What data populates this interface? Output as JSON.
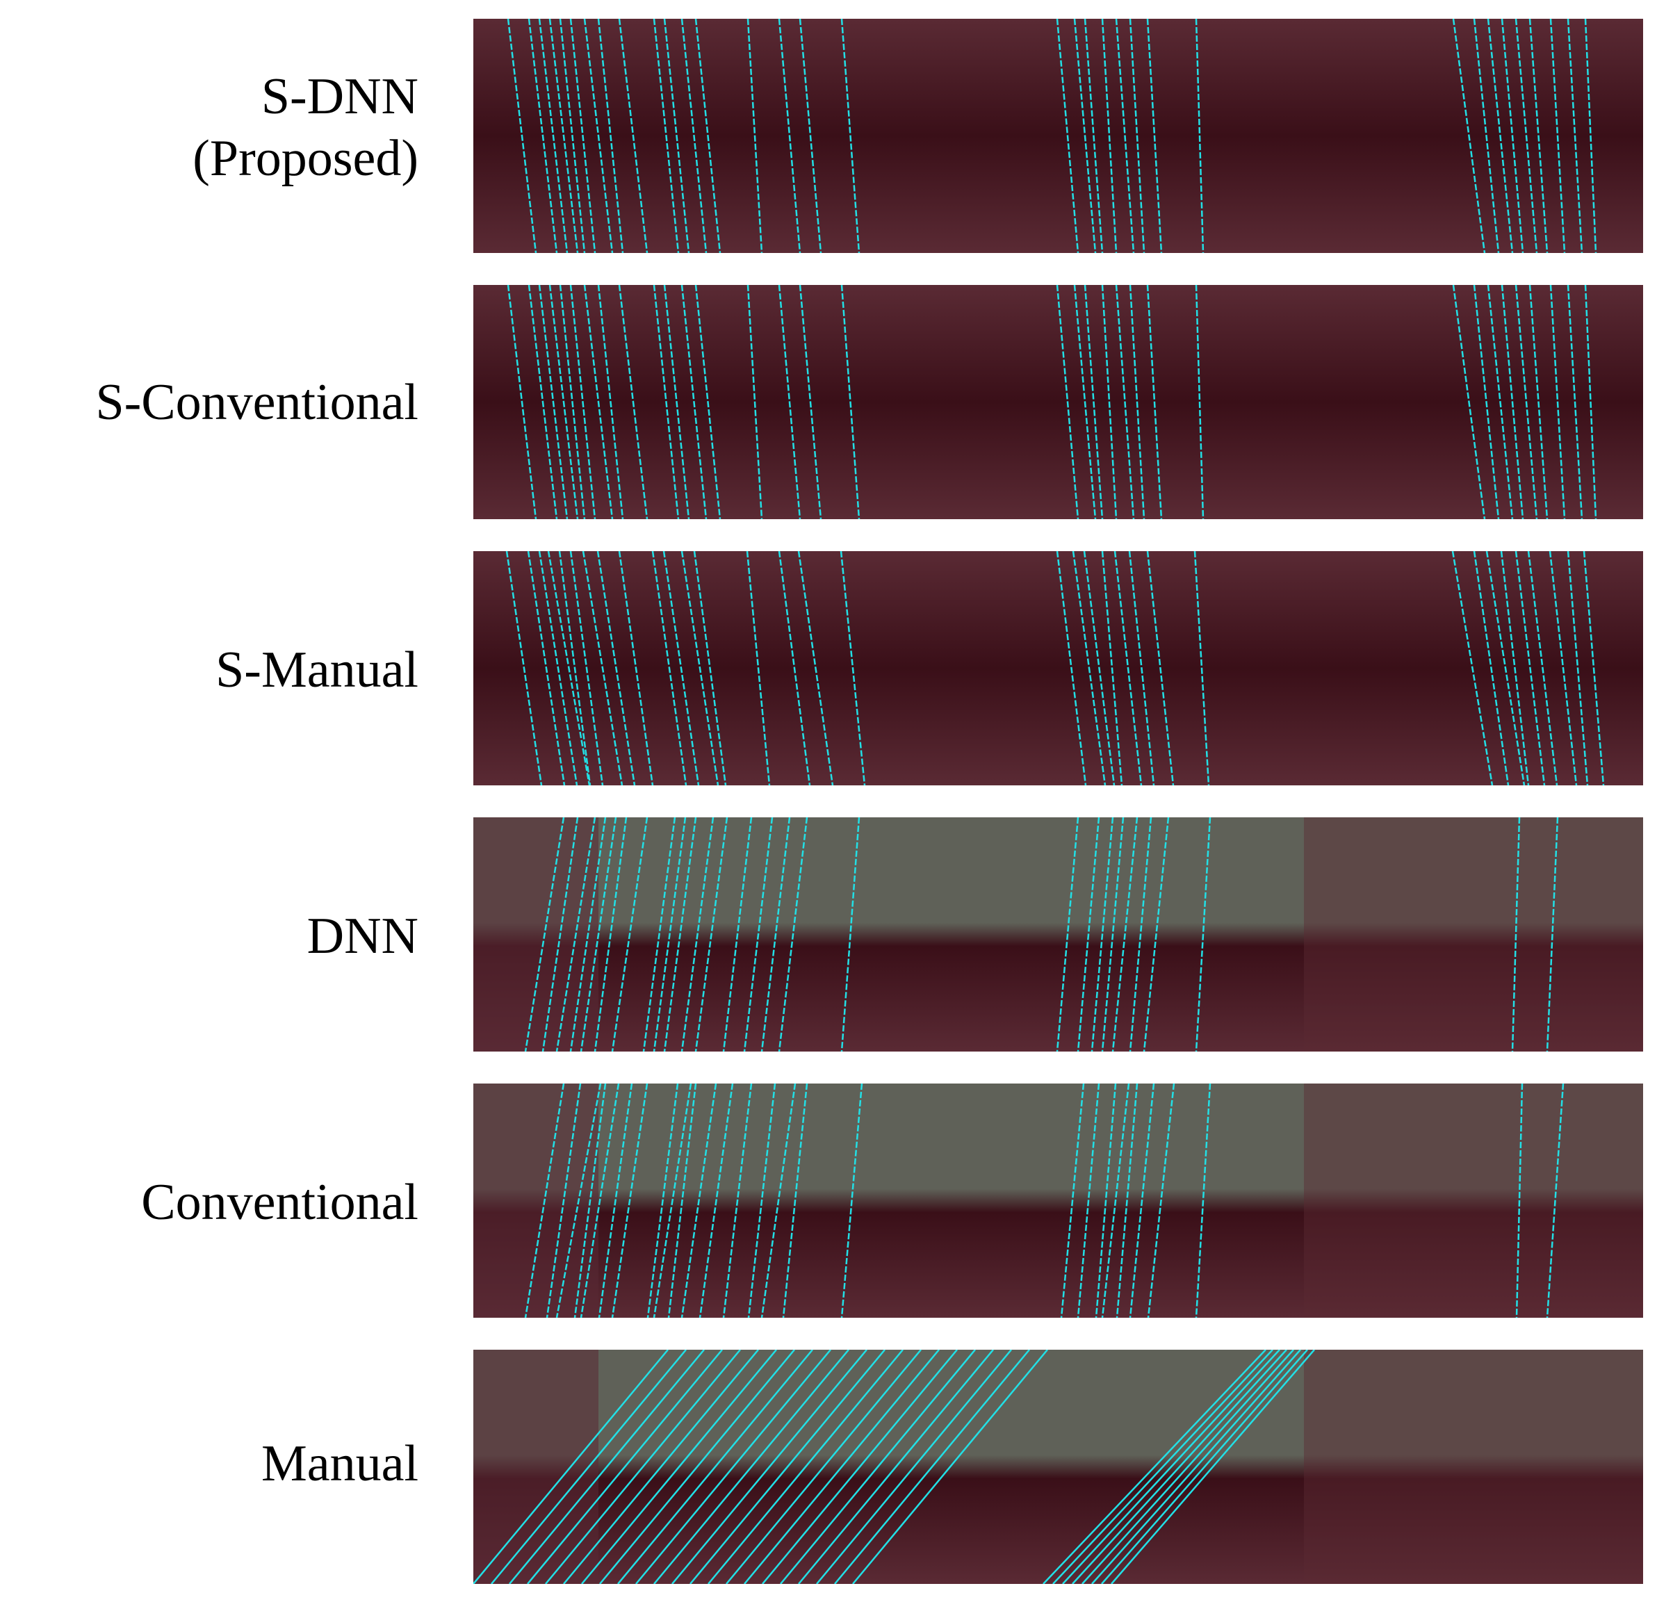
{
  "rows": [
    {
      "label_lines": [
        "S-DNN",
        "(Proposed)"
      ],
      "style": "S"
    },
    {
      "label_lines": [
        "S-Conventional"
      ],
      "style": "S"
    },
    {
      "label_lines": [
        "S-Manual"
      ],
      "style": "S"
    },
    {
      "label_lines": [
        "DNN"
      ],
      "style": "P"
    },
    {
      "label_lines": [
        "Conventional"
      ],
      "style": "P"
    },
    {
      "label_lines": [
        "Manual"
      ],
      "style": "P"
    }
  ],
  "colors": {
    "trace": "#22e0e6",
    "background_dark": "#3a0f18",
    "background_mid": "#5a2a34",
    "background_grey": "#5f6158"
  }
}
